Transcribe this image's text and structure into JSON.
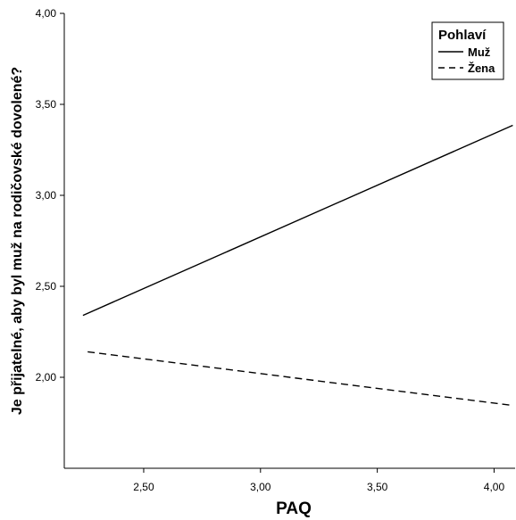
{
  "chart_data": {
    "type": "line",
    "xlabel": "PAQ",
    "ylabel": "Je přijatelné, aby byl muž na rodičovské dovolené?",
    "xlim": [
      2.16,
      4.09
    ],
    "ylim": [
      1.5,
      4.0
    ],
    "x_ticks": [
      2.5,
      3.0,
      3.5,
      4.0
    ],
    "y_ticks": [
      2.0,
      2.5,
      3.0,
      3.5,
      4.0
    ],
    "x_tick_labels": [
      "2,50",
      "3,00",
      "3,50",
      "4,00"
    ],
    "y_tick_labels": [
      "2,00",
      "2,50",
      "3,00",
      "3,50",
      "4,00"
    ],
    "grid": false,
    "legend": {
      "title": "Pohlaví",
      "position": "top-right"
    },
    "series": [
      {
        "name": "Muž",
        "style": "solid",
        "x": [
          2.24,
          4.08
        ],
        "y": [
          2.34,
          3.385
        ]
      },
      {
        "name": "Žena",
        "style": "dashed",
        "x": [
          2.26,
          4.08
        ],
        "y": [
          2.14,
          1.845
        ]
      }
    ]
  }
}
